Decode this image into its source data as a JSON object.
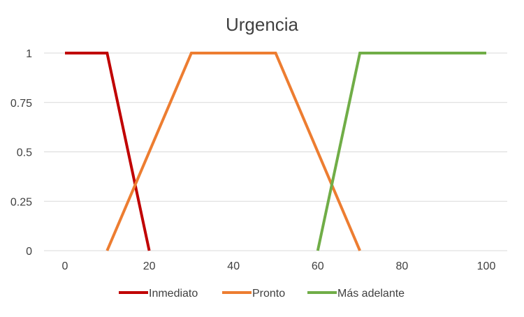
{
  "chart_data": {
    "type": "line",
    "title": "Urgencia",
    "xlabel": "",
    "ylabel": "",
    "xlim": [
      0,
      100
    ],
    "ylim": [
      0,
      1
    ],
    "x_ticks": [
      0,
      20,
      40,
      60,
      80,
      100
    ],
    "x_tick_labels": [
      "0",
      "20",
      "40",
      "60",
      "80",
      "100"
    ],
    "y_ticks": [
      0,
      0.25,
      0.5,
      0.75,
      1
    ],
    "y_tick_labels": [
      "0",
      "0.25",
      "0.5",
      "0.75",
      "1"
    ],
    "grid": "horizontal",
    "legend_position": "bottom",
    "series": [
      {
        "name": "Inmediato",
        "color": "#c00000",
        "x": [
          0,
          10,
          20
        ],
        "y": [
          1,
          1,
          0
        ]
      },
      {
        "name": "Pronto",
        "color": "#ed7d31",
        "x": [
          10,
          30,
          50,
          70
        ],
        "y": [
          0,
          1,
          1,
          0
        ]
      },
      {
        "name": "Más adelante",
        "color": "#70ad47",
        "x": [
          60,
          70,
          100
        ],
        "y": [
          0,
          1,
          1
        ]
      }
    ]
  }
}
